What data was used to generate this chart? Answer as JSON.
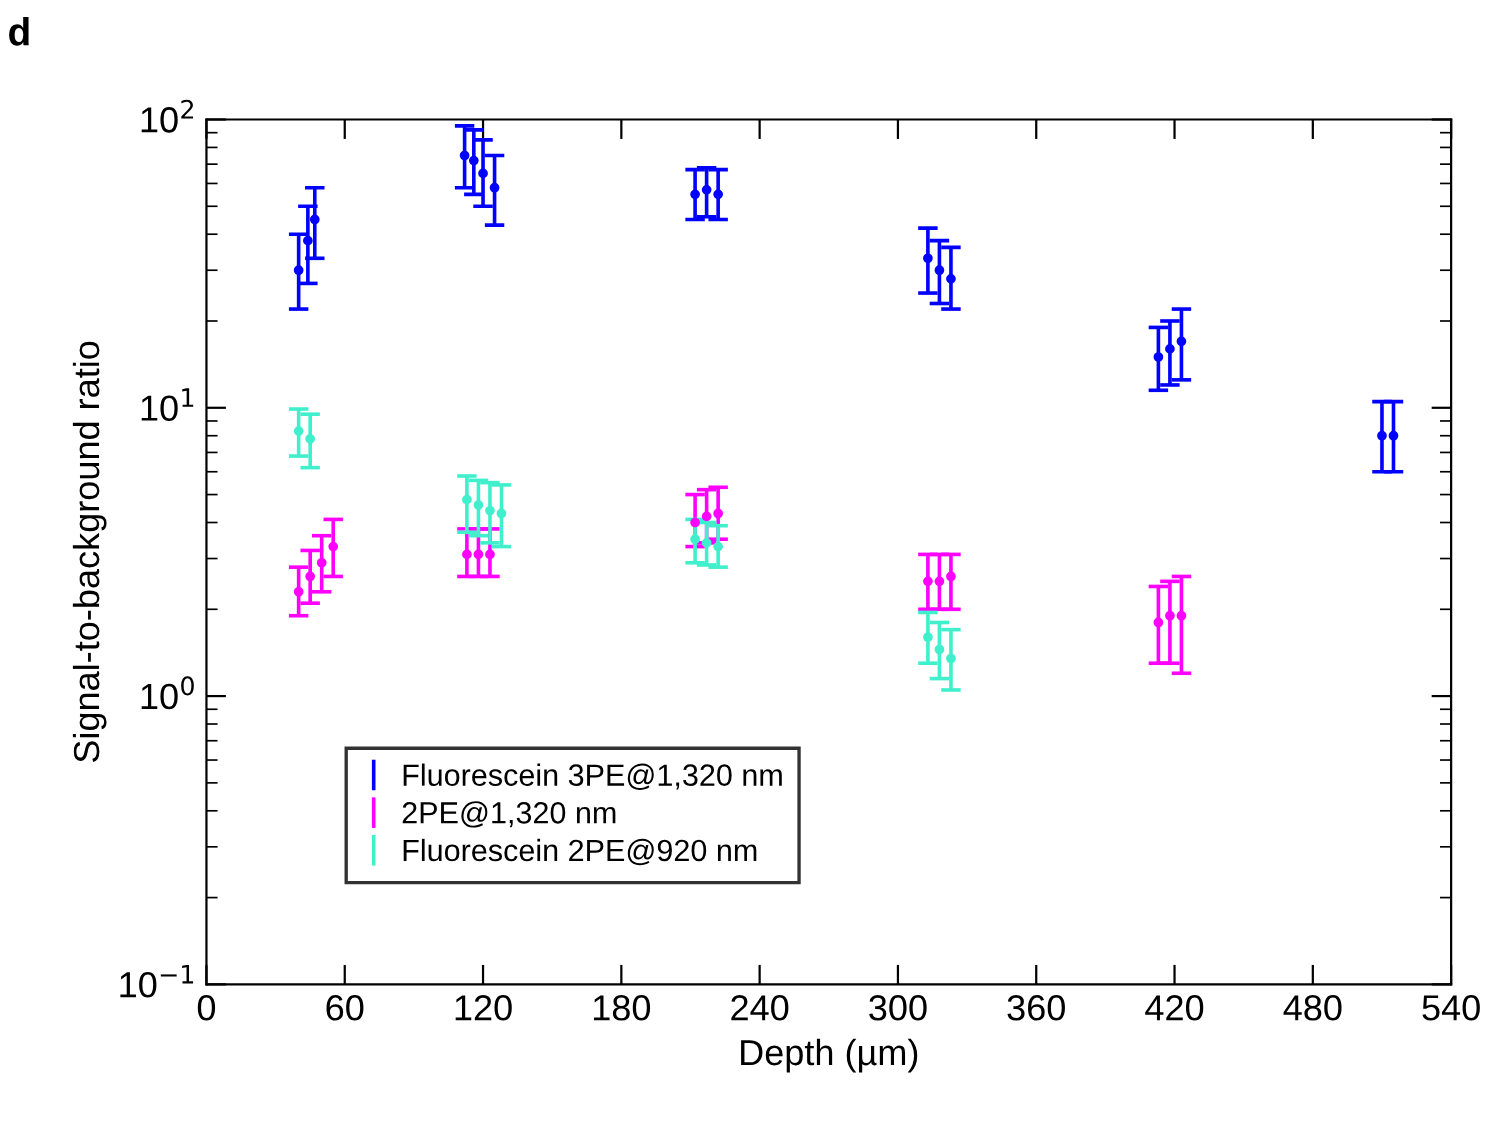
{
  "chart_data": {
    "type": "scatter",
    "xlabel": "Depth (µm)",
    "ylabel": "Signal-to-background ratio",
    "annotations": [
      "d"
    ],
    "log": "y",
    "xlim": [
      0,
      540
    ],
    "xticks": [
      0,
      60,
      120,
      180,
      240,
      300,
      360,
      420,
      480,
      540
    ],
    "ylim": [
      0.1,
      100
    ],
    "yticks": [
      {
        "value": 0.1,
        "label": "10$^{−1}$"
      },
      {
        "value": 1,
        "label": "10$^{0}$"
      },
      {
        "value": 10,
        "label": "10$^{1}$"
      },
      {
        "value": 100,
        "label": "10$^{2}$"
      }
    ],
    "grid": false,
    "legend": "bottom left",
    "marker": "circle",
    "series": [
      {
        "name": "Fluorescein 3PE@1,320 nm",
        "color": "#0000ff",
        "x": [
          40,
          44,
          47,
          112,
          116,
          120,
          125,
          212,
          217,
          222,
          313,
          318,
          323,
          413,
          418,
          423,
          510,
          515
        ],
        "values": [
          30,
          38,
          45,
          75,
          72,
          65,
          58,
          55,
          57,
          55,
          33,
          30,
          28,
          15,
          16,
          17,
          8,
          8
        ],
        "errors": [
          [
            22,
            40
          ],
          [
            27,
            50
          ],
          [
            33,
            58
          ],
          [
            58,
            95
          ],
          [
            55,
            92
          ],
          [
            50,
            85
          ],
          [
            43,
            75
          ],
          [
            45,
            67
          ],
          [
            46,
            68
          ],
          [
            45,
            67
          ],
          [
            25,
            42
          ],
          [
            23,
            38
          ],
          [
            22,
            36
          ],
          [
            11.5,
            19
          ],
          [
            12,
            20
          ],
          [
            12.5,
            22
          ],
          [
            6,
            10.5
          ],
          [
            6,
            10.5
          ]
        ]
      },
      {
        "name": "2PE@1,320 nm",
        "color": "#ff00ff",
        "x": [
          40,
          45,
          50,
          55,
          113,
          118,
          123,
          212,
          217,
          222,
          313,
          318,
          323,
          413,
          418,
          423
        ],
        "values": [
          2.3,
          2.6,
          2.9,
          3.3,
          3.1,
          3.1,
          3.1,
          4.0,
          4.2,
          4.3,
          2.5,
          2.5,
          2.6,
          1.8,
          1.9,
          1.9
        ],
        "errors": [
          [
            1.9,
            2.8
          ],
          [
            2.1,
            3.2
          ],
          [
            2.3,
            3.6
          ],
          [
            2.6,
            4.1
          ],
          [
            2.6,
            3.8
          ],
          [
            2.6,
            3.8
          ],
          [
            2.6,
            3.8
          ],
          [
            3.3,
            5.0
          ],
          [
            3.4,
            5.2
          ],
          [
            3.5,
            5.3
          ],
          [
            2.0,
            3.1
          ],
          [
            2.0,
            3.1
          ],
          [
            2.0,
            3.1
          ],
          [
            1.3,
            2.4
          ],
          [
            1.3,
            2.5
          ],
          [
            1.2,
            2.6
          ]
        ]
      },
      {
        "name": "Fluorescein 2PE@920 nm",
        "color": "#40f0cc",
        "x": [
          40,
          45,
          113,
          118,
          123,
          128,
          212,
          217,
          222,
          313,
          318,
          323
        ],
        "values": [
          8.3,
          7.8,
          4.8,
          4.6,
          4.4,
          4.3,
          3.5,
          3.4,
          3.3,
          1.6,
          1.45,
          1.35
        ],
        "errors": [
          [
            6.8,
            9.9
          ],
          [
            6.2,
            9.5
          ],
          [
            3.7,
            5.8
          ],
          [
            3.6,
            5.6
          ],
          [
            3.4,
            5.5
          ],
          [
            3.3,
            5.4
          ],
          [
            2.9,
            4.1
          ],
          [
            2.85,
            4.0
          ],
          [
            2.8,
            3.9
          ],
          [
            1.3,
            1.95
          ],
          [
            1.15,
            1.8
          ],
          [
            1.05,
            1.7
          ]
        ]
      }
    ]
  }
}
